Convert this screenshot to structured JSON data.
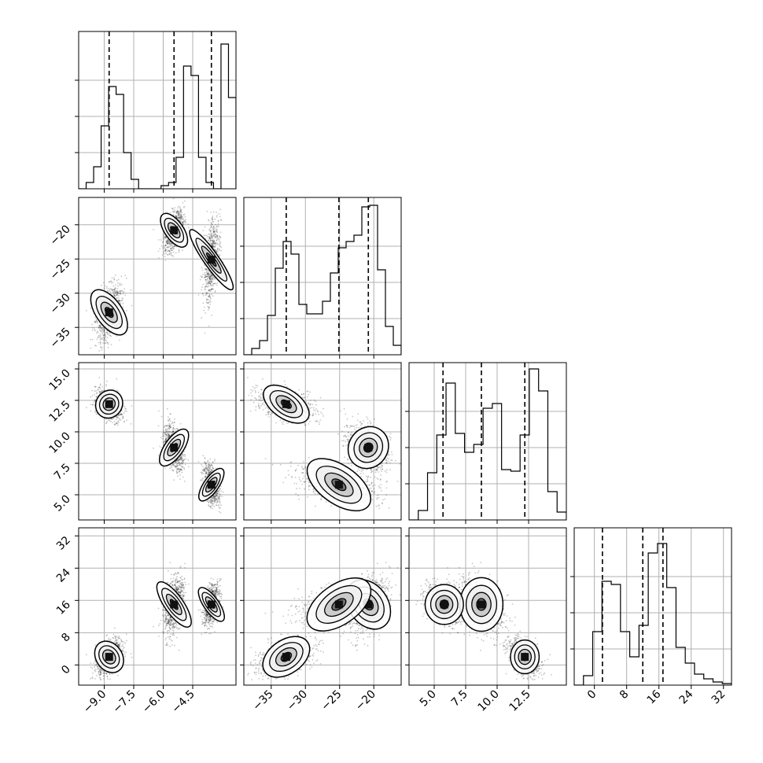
{
  "chart_data": {
    "type": "corner",
    "variables": [
      {
        "index": 0,
        "range": [
          -10.3,
          -2.3
        ],
        "ticks": [
          -9.0,
          -7.5,
          -6.0,
          -4.5
        ],
        "tick_labels": [
          "−9.0",
          "−7.5",
          "−6.0",
          "−4.5"
        ],
        "quantiles": [
          -8.75,
          -5.45,
          -3.55
        ],
        "histogram": [
          0.0,
          0.04,
          0.14,
          0.4,
          0.65,
          0.6,
          0.23,
          0.06,
          0.0,
          0.0,
          0.0,
          0.02,
          0.04,
          0.2,
          0.78,
          0.72,
          0.2,
          0.04,
          0.0,
          0.92,
          0.58
        ]
      },
      {
        "index": 1,
        "range": [
          -39,
          -16
        ],
        "ticks": [
          -35,
          -30,
          -25,
          -20
        ],
        "tick_labels": [
          "−35",
          "−30",
          "−25",
          "−20"
        ],
        "quantiles": [
          -32.8,
          -25.1,
          -20.8
        ],
        "histogram": [
          0.0,
          0.04,
          0.09,
          0.25,
          0.55,
          0.72,
          0.64,
          0.32,
          0.26,
          0.26,
          0.34,
          0.52,
          0.68,
          0.72,
          0.76,
          0.94,
          0.95,
          0.54,
          0.18,
          0.06
        ]
      },
      {
        "index": 2,
        "range": [
          3.0,
          15.5
        ],
        "ticks": [
          5.0,
          7.5,
          10.0,
          12.5
        ],
        "tick_labels": [
          "5.0",
          "7.5",
          "10.0",
          "12.5"
        ],
        "y_ticks": [
          5.0,
          7.5,
          10.0,
          12.5,
          15.0
        ],
        "y_tick_labels": [
          "5.0",
          "7.5",
          "10.0",
          "12.5",
          "15.0"
        ],
        "quantiles": [
          5.7,
          8.75,
          12.2
        ],
        "histogram": [
          0.0,
          0.06,
          0.3,
          0.54,
          0.87,
          0.55,
          0.43,
          0.48,
          0.71,
          0.74,
          0.32,
          0.31,
          0.54,
          0.96,
          0.82,
          0.18,
          0.05
        ]
      },
      {
        "index": 3,
        "range": [
          -5,
          34
        ],
        "ticks": [
          0,
          8,
          16,
          24,
          32
        ],
        "tick_labels": [
          "0",
          "8",
          "16",
          "24",
          "32"
        ],
        "quantiles": [
          2.0,
          12.0,
          17.0
        ],
        "histogram": [
          0.0,
          0.06,
          0.34,
          0.66,
          0.64,
          0.34,
          0.18,
          0.38,
          0.84,
          0.9,
          0.62,
          0.24,
          0.14,
          0.07,
          0.04,
          0.02,
          0.01
        ]
      }
    ],
    "modes": [
      {
        "weight": 0.35,
        "mean": [
          -8.75,
          -32.8,
          12.2,
          2.0
        ],
        "sd": [
          0.35,
          2.0,
          0.6,
          2.2
        ]
      },
      {
        "weight": 0.35,
        "mean": [
          -5.45,
          -20.8,
          8.75,
          15.0
        ],
        "sd": [
          0.25,
          1.5,
          0.9,
          3.5
        ]
      },
      {
        "weight": 0.3,
        "mean": [
          -3.55,
          -25.1,
          5.8,
          15.0
        ],
        "sd": [
          0.2,
          2.8,
          0.8,
          2.6
        ]
      }
    ],
    "grid": true,
    "quantile_line_style": "dashed",
    "density_contours": true,
    "samples_as_points": true
  }
}
